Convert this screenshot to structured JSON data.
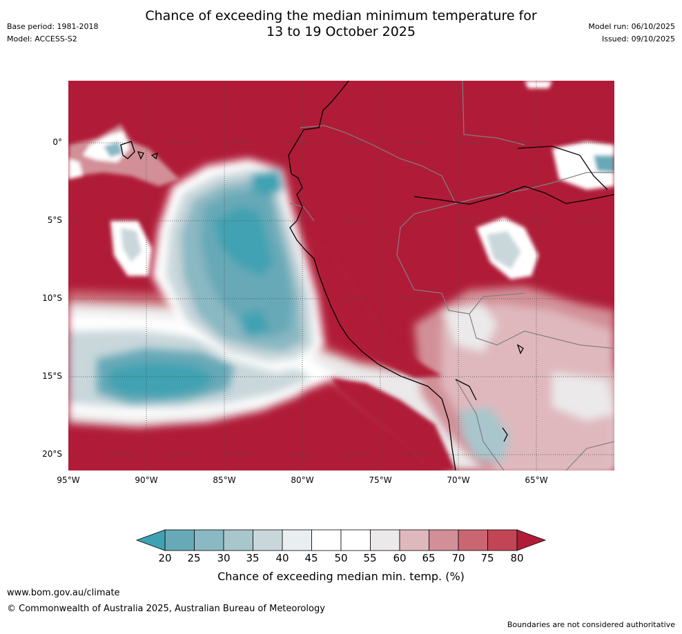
{
  "title": {
    "line1": "Chance of exceeding the median minimum temperature for",
    "line2": "13 to 19 October 2025"
  },
  "meta_left": {
    "base_period": "Base period: 1981-2018",
    "model": "Model: ACCESS-S2"
  },
  "meta_right": {
    "model_run": "Model run: 06/10/2025",
    "issued": "Issued: 09/10/2025"
  },
  "map": {
    "lat_labels": [
      "0°",
      "5°S",
      "10°S",
      "15°S",
      "20°S"
    ],
    "lon_labels": [
      "95°W",
      "90°W",
      "85°W",
      "80°W",
      "75°W",
      "70°W",
      "65°W"
    ]
  },
  "colorbar": {
    "ticks": [
      "20",
      "25",
      "30",
      "35",
      "40",
      "45",
      "50",
      "55",
      "60",
      "65",
      "70",
      "75",
      "80"
    ],
    "label": "Chance of exceeding median min. temp. (%)",
    "colors": {
      "below_20": "#3fa2b2",
      "20_25": "#68a9b7",
      "25_30": "#8ab8c3",
      "30_35": "#a8c6cc",
      "35_40": "#c9d7db",
      "40_45": "#e9eef0",
      "45_50": "#ffffff",
      "50_55": "#ffffff",
      "55_60": "#ebe9ea",
      "60_65": "#dfb8bd",
      "65_70": "#d28f97",
      "70_75": "#c96671",
      "75_80": "#c24556",
      "above_80": "#b01c38"
    }
  },
  "footer": {
    "url": "www.bom.gov.au/climate",
    "copyright": "© Commonwealth of Australia 2025, Australian Bureau of Meteorology",
    "note": "Boundaries are not considered authoritative"
  }
}
